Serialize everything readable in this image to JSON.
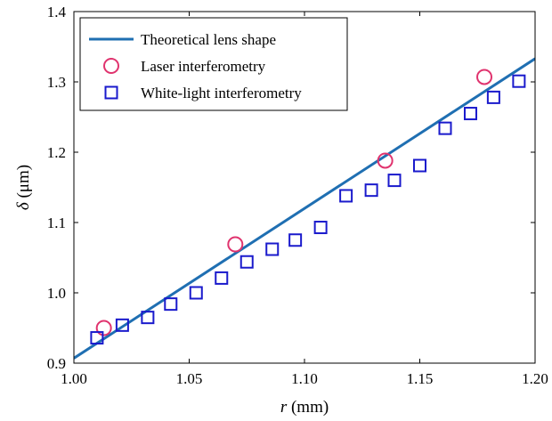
{
  "chart_data": {
    "type": "scatter",
    "xlabel": {
      "symbol": "r",
      "unit": " (mm)"
    },
    "ylabel": {
      "symbol": "δ",
      "unit": " (μm)"
    },
    "xlim": [
      1.0,
      1.2
    ],
    "ylim": [
      0.9,
      1.4
    ],
    "xticks": [
      1.0,
      1.05,
      1.1,
      1.15,
      1.2
    ],
    "xtick_labels": [
      "1.00",
      "1.05",
      "1.10",
      "1.15",
      "1.20"
    ],
    "yticks": [
      0.9,
      1.0,
      1.1,
      1.2,
      1.3,
      1.4
    ],
    "ytick_labels": [
      "0.9",
      "1.0",
      "1.1",
      "1.2",
      "1.3",
      "1.4"
    ],
    "grid": false,
    "legend_position": "top-left",
    "series": [
      {
        "name": "Theoretical lens shape",
        "kind": "line",
        "color": "#1f6fb2",
        "x": [
          1.0,
          1.2
        ],
        "y": [
          0.907,
          1.333
        ]
      },
      {
        "name": "Laser interferometry",
        "kind": "circle",
        "color": "#e0336e",
        "x": [
          1.013,
          1.07,
          1.135,
          1.178
        ],
        "y": [
          0.95,
          1.069,
          1.188,
          1.307
        ]
      },
      {
        "name": "White-light interferometry",
        "kind": "square",
        "color": "#1a1acc",
        "x": [
          1.01,
          1.021,
          1.032,
          1.042,
          1.053,
          1.064,
          1.075,
          1.086,
          1.096,
          1.107,
          1.118,
          1.129,
          1.139,
          1.15,
          1.161,
          1.172,
          1.182,
          1.193
        ],
        "y": [
          0.936,
          0.954,
          0.965,
          0.984,
          1.0,
          1.021,
          1.044,
          1.062,
          1.075,
          1.093,
          1.138,
          1.146,
          1.16,
          1.181,
          1.234,
          1.255,
          1.278,
          1.301
        ]
      }
    ]
  }
}
